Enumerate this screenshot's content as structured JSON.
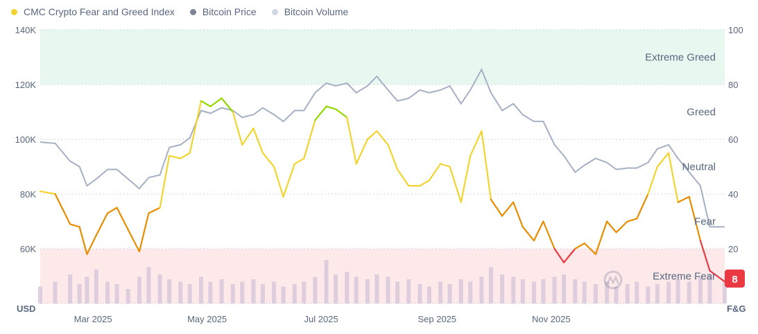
{
  "legend": [
    {
      "label": "CMC Crypto Fear and Greed Index",
      "color": "#f3d42f"
    },
    {
      "label": "Bitcoin Price",
      "color": "#7b8497"
    },
    {
      "label": "Bitcoin Volume",
      "color": "#cfd6e4"
    }
  ],
  "chart_data": {
    "type": "line",
    "x_range": [
      "2025-02-03",
      "2026-02-04"
    ],
    "x_ticks": [
      {
        "date": "2025-03-01",
        "label": "Mar 2025"
      },
      {
        "date": "2025-05-01",
        "label": "May 2025"
      },
      {
        "date": "2025-07-01",
        "label": "Jul 2025"
      },
      {
        "date": "2025-09-01",
        "label": "Sep 2025"
      },
      {
        "date": "2025-11-01",
        "label": "Nov 2025"
      }
    ],
    "y_left": {
      "unit_label": "USD",
      "range": [
        40000,
        140000
      ],
      "ticks": [
        {
          "v": 60000,
          "label": "60K"
        },
        {
          "v": 80000,
          "label": "80K"
        },
        {
          "v": 100000,
          "label": "100K"
        },
        {
          "v": 120000,
          "label": "120K"
        },
        {
          "v": 140000,
          "label": "140K"
        }
      ]
    },
    "y_right": {
      "unit_label": "F&G",
      "range": [
        0,
        100
      ],
      "ticks": [
        {
          "v": 20,
          "label": "20"
        },
        {
          "v": 40,
          "label": "40"
        },
        {
          "v": 60,
          "label": "60"
        },
        {
          "v": 80,
          "label": "80"
        },
        {
          "v": 100,
          "label": "100"
        }
      ]
    },
    "grid": true,
    "legend_position": "top-left",
    "bands": [
      {
        "label": "Extreme Greed",
        "from": 80,
        "to": 100,
        "fill": "#e8f8f0"
      },
      {
        "label": "Greed",
        "from": 60,
        "to": 80,
        "fill": "none"
      },
      {
        "label": "Neutral",
        "from": 40,
        "to": 60,
        "fill": "none"
      },
      {
        "label": "Fear",
        "from": 20,
        "to": 40,
        "fill": "none"
      },
      {
        "label": "Extreme Fear",
        "from": 0,
        "to": 20,
        "fill": "#fde8ea"
      }
    ],
    "fg_colors": {
      "extreme_fear": "#ea3943",
      "fear": "#ea8c00",
      "neutral": "#f3d42f",
      "greed": "#93d900"
    },
    "price_color": "#a6b0c3",
    "volume_color": "#d6c6d8",
    "current_value_badge": {
      "value": "8",
      "color": "#ea3943"
    },
    "dates": [
      "2025-02-03",
      "2025-02-11",
      "2025-02-19",
      "2025-02-24",
      "2025-02-28",
      "2025-03-05",
      "2025-03-11",
      "2025-03-16",
      "2025-03-22",
      "2025-03-28",
      "2025-04-02",
      "2025-04-08",
      "2025-04-13",
      "2025-04-19",
      "2025-04-24",
      "2025-04-30",
      "2025-05-05",
      "2025-05-11",
      "2025-05-17",
      "2025-05-22",
      "2025-05-28",
      "2025-06-02",
      "2025-06-08",
      "2025-06-13",
      "2025-06-19",
      "2025-06-24",
      "2025-06-30",
      "2025-07-06",
      "2025-07-11",
      "2025-07-17",
      "2025-07-22",
      "2025-07-28",
      "2025-08-02",
      "2025-08-08",
      "2025-08-13",
      "2025-08-19",
      "2025-08-25",
      "2025-08-30",
      "2025-09-05",
      "2025-09-10",
      "2025-09-16",
      "2025-09-21",
      "2025-09-27",
      "2025-10-02",
      "2025-10-08",
      "2025-10-14",
      "2025-10-19",
      "2025-10-25",
      "2025-10-30",
      "2025-11-05",
      "2025-11-10",
      "2025-11-16",
      "2025-11-21",
      "2025-11-27",
      "2025-12-03",
      "2025-12-08",
      "2025-12-14",
      "2025-12-19",
      "2025-12-25",
      "2025-12-30",
      "2026-01-05",
      "2026-01-10",
      "2026-01-16",
      "2026-01-22",
      "2026-01-27",
      "2026-02-04"
    ],
    "series": [
      {
        "name": "CMC Crypto Fear and Greed Index",
        "axis": "right",
        "values": [
          41,
          40,
          29,
          28,
          18,
          25,
          33,
          35,
          27,
          19,
          33,
          35,
          54,
          53,
          55,
          74,
          72,
          75,
          70,
          58,
          64,
          55,
          50,
          39,
          51,
          53,
          67,
          72,
          71,
          68,
          51,
          60,
          63,
          58,
          49,
          43,
          43,
          45,
          51,
          50,
          37,
          54,
          63,
          38,
          32,
          37,
          28,
          23,
          30,
          20,
          15,
          20,
          22,
          18,
          30,
          26,
          30,
          31,
          40,
          50,
          55,
          37,
          39,
          23,
          12,
          8
        ]
      },
      {
        "name": "Bitcoin Price",
        "axis": "left",
        "values": [
          99000,
          98500,
          92000,
          90000,
          83000,
          85500,
          89000,
          89000,
          85500,
          82000,
          86000,
          87000,
          97000,
          98000,
          100500,
          110500,
          109500,
          111500,
          110500,
          108000,
          109000,
          111500,
          109000,
          106500,
          110500,
          110500,
          117000,
          120500,
          119500,
          120500,
          117000,
          119500,
          123000,
          118000,
          114000,
          115000,
          118000,
          117000,
          118000,
          119500,
          113000,
          118000,
          125500,
          117000,
          110500,
          113000,
          109000,
          106500,
          106500,
          98000,
          94000,
          88000,
          90500,
          93000,
          91500,
          89000,
          89500,
          89500,
          91500,
          96500,
          98000,
          93000,
          88000,
          83000,
          68000,
          68000
        ]
      },
      {
        "name": "Bitcoin Volume",
        "axis": "none",
        "relative": true,
        "values": [
          0.35,
          0.45,
          0.6,
          0.4,
          0.55,
          0.7,
          0.45,
          0.4,
          0.3,
          0.55,
          0.75,
          0.6,
          0.5,
          0.45,
          0.4,
          0.55,
          0.45,
          0.5,
          0.4,
          0.45,
          0.5,
          0.4,
          0.45,
          0.35,
          0.4,
          0.45,
          0.55,
          0.9,
          0.6,
          0.65,
          0.55,
          0.5,
          0.6,
          0.55,
          0.45,
          0.5,
          0.4,
          0.35,
          0.45,
          0.4,
          0.5,
          0.45,
          0.55,
          0.75,
          0.6,
          0.55,
          0.5,
          0.45,
          0.5,
          0.55,
          0.6,
          0.5,
          0.45,
          0.4,
          0.45,
          0.35,
          0.4,
          0.45,
          0.35,
          0.4,
          0.45,
          0.5,
          0.45,
          0.55,
          0.6,
          0.5
        ]
      }
    ]
  }
}
